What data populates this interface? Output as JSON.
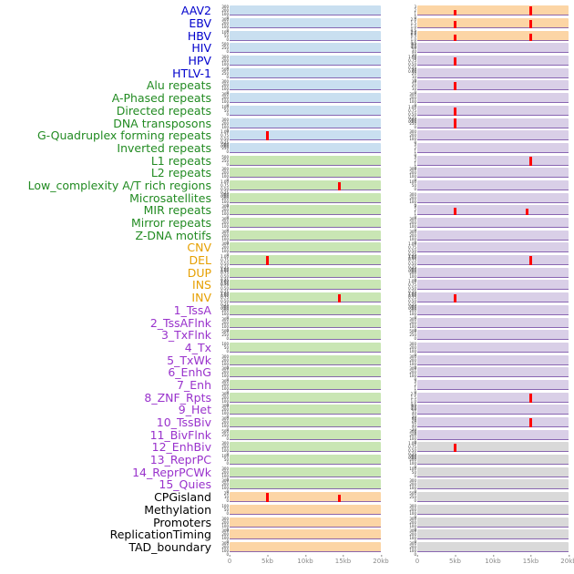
{
  "palette": {
    "label": {
      "blue": "#0000cc",
      "green": "#228B22",
      "orange": "#e69f00",
      "purple": "#9932CC",
      "black": "#000000"
    },
    "panel": {
      "blue": "#c9dff0",
      "green": "#c9e6b4",
      "orange": "#fcd5a5",
      "purple": "#d9cfe7",
      "gray": "#d9d9d9"
    },
    "spike": "#ff0000",
    "baseline": "#7a52a8"
  },
  "chart_data": {
    "type": "area",
    "title": "",
    "xlabel": "",
    "columns": 2,
    "x_axis": {
      "ticks": [
        "0",
        "5kb",
        "10kb",
        "15kb",
        "20kb"
      ],
      "range_kb": [
        0,
        20
      ]
    },
    "ytick_sets": {
      "count300": [
        "300",
        "200",
        "100",
        "0"
      ],
      "count500": [
        "500",
        "250",
        "0"
      ],
      "count100": [
        "100",
        "50",
        "0"
      ],
      "count80": [
        "80",
        "60",
        "40",
        "20",
        "0"
      ],
      "count30": [
        "30",
        "20",
        "10",
        "0"
      ],
      "count20": [
        "20",
        "10",
        "0"
      ],
      "count3": [
        "3",
        "2",
        "1",
        "0"
      ],
      "frac1": [
        "1.00",
        "0.75",
        "0.50",
        "0.25",
        "0.00"
      ],
      "frac2": [
        "2.0",
        "1.5",
        "1.0",
        "0.5",
        "0.0"
      ]
    },
    "rows": [
      {
        "label": "AAV2",
        "label_color": "blue",
        "panels": [
          {
            "bg": "blue",
            "yt": "count300",
            "spikes": []
          },
          {
            "bg": "orange",
            "yt": "count3",
            "spikes": [
              [
                5,
                0.55
              ],
              [
                15,
                0.95
              ]
            ]
          }
        ]
      },
      {
        "label": "EBV",
        "label_color": "blue",
        "panels": [
          {
            "bg": "blue",
            "yt": "count300",
            "spikes": []
          },
          {
            "bg": "orange",
            "yt": "frac2",
            "spikes": [
              [
                5,
                0.75
              ],
              [
                15,
                0.85
              ]
            ]
          }
        ]
      },
      {
        "label": "HBV",
        "label_color": "blue",
        "panels": [
          {
            "bg": "blue",
            "yt": "count100",
            "spikes": []
          },
          {
            "bg": "orange",
            "yt": "frac2",
            "spikes": [
              [
                5,
                0.65
              ],
              [
                15,
                0.7
              ]
            ]
          }
        ]
      },
      {
        "label": "HIV",
        "label_color": "blue",
        "panels": [
          {
            "bg": "blue",
            "yt": "count500",
            "spikes": []
          },
          {
            "bg": "purple",
            "yt": "count80",
            "spikes": []
          }
        ]
      },
      {
        "label": "HPV",
        "label_color": "blue",
        "panels": [
          {
            "bg": "blue",
            "yt": "count300",
            "spikes": []
          },
          {
            "bg": "purple",
            "yt": "frac1",
            "spikes": [
              [
                5,
                0.85
              ]
            ]
          }
        ]
      },
      {
        "label": "HTLV-1",
        "label_color": "blue",
        "panels": [
          {
            "bg": "blue",
            "yt": "count500",
            "spikes": []
          },
          {
            "bg": "purple",
            "yt": "count30",
            "spikes": []
          }
        ]
      },
      {
        "label": "Alu repeats",
        "label_color": "green",
        "panels": [
          {
            "bg": "blue",
            "yt": "count300",
            "spikes": []
          },
          {
            "bg": "purple",
            "yt": "count30",
            "spikes": [
              [
                5,
                0.85
              ]
            ]
          }
        ]
      },
      {
        "label": "A-Phased repeats",
        "label_color": "green",
        "panels": [
          {
            "bg": "blue",
            "yt": "count300",
            "spikes": []
          },
          {
            "bg": "purple",
            "yt": "count300",
            "spikes": []
          }
        ]
      },
      {
        "label": "Directed repeats",
        "label_color": "green",
        "panels": [
          {
            "bg": "blue",
            "yt": "count100",
            "spikes": []
          },
          {
            "bg": "purple",
            "yt": "frac1",
            "spikes": [
              [
                5,
                0.8
              ]
            ]
          }
        ]
      },
      {
        "label": "DNA transposons",
        "label_color": "green",
        "panels": [
          {
            "bg": "blue",
            "yt": "count300",
            "spikes": []
          },
          {
            "bg": "purple",
            "yt": "count500",
            "spikes": [
              [
                5,
                0.95
              ]
            ]
          }
        ]
      },
      {
        "label": "G-Quadruplex forming repeats",
        "label_color": "green",
        "panels": [
          {
            "bg": "blue",
            "yt": "frac1",
            "spikes": [
              [
                5,
                0.9
              ]
            ]
          },
          {
            "bg": "purple",
            "yt": "count300",
            "spikes": []
          }
        ]
      },
      {
        "label": "Inverted repeats",
        "label_color": "green",
        "panels": [
          {
            "bg": "blue",
            "yt": "count500",
            "spikes": []
          },
          {
            "bg": "purple",
            "yt": "count3",
            "spikes": []
          }
        ]
      },
      {
        "label": "L1 repeats",
        "label_color": "green",
        "panels": [
          {
            "bg": "green",
            "yt": "count500",
            "spikes": []
          },
          {
            "bg": "purple",
            "yt": "count3",
            "spikes": [
              [
                15,
                0.9
              ]
            ]
          }
        ]
      },
      {
        "label": "L2 repeats",
        "label_color": "green",
        "panels": [
          {
            "bg": "green",
            "yt": "count300",
            "spikes": []
          },
          {
            "bg": "purple",
            "yt": "count300",
            "spikes": []
          }
        ]
      },
      {
        "label": "Low_complexity A/T rich regions",
        "label_color": "green",
        "panels": [
          {
            "bg": "green",
            "yt": "frac1",
            "spikes": [
              [
                14.5,
                0.85
              ]
            ]
          },
          {
            "bg": "purple",
            "yt": "count100",
            "spikes": []
          }
        ]
      },
      {
        "label": "Microsatellites",
        "label_color": "green",
        "panels": [
          {
            "bg": "green",
            "yt": "count300",
            "spikes": []
          },
          {
            "bg": "purple",
            "yt": "count300",
            "spikes": []
          }
        ]
      },
      {
        "label": "MIR repeats",
        "label_color": "green",
        "panels": [
          {
            "bg": "green",
            "yt": "count300",
            "spikes": []
          },
          {
            "bg": "purple",
            "yt": "count3",
            "spikes": [
              [
                5,
                0.8
              ],
              [
                14.5,
                0.7
              ]
            ]
          }
        ]
      },
      {
        "label": "Mirror repeats",
        "label_color": "green",
        "panels": [
          {
            "bg": "green",
            "yt": "count300",
            "spikes": []
          },
          {
            "bg": "purple",
            "yt": "count300",
            "spikes": []
          }
        ]
      },
      {
        "label": "Z-DNA motifs",
        "label_color": "green",
        "panels": [
          {
            "bg": "green",
            "yt": "count300",
            "spikes": []
          },
          {
            "bg": "purple",
            "yt": "count300",
            "spikes": []
          }
        ]
      },
      {
        "label": "CNV",
        "label_color": "orange",
        "panels": [
          {
            "bg": "green",
            "yt": "count300",
            "spikes": []
          },
          {
            "bg": "purple",
            "yt": "frac1",
            "spikes": []
          }
        ]
      },
      {
        "label": "DEL",
        "label_color": "orange",
        "panels": [
          {
            "bg": "green",
            "yt": "frac1",
            "spikes": [
              [
                5,
                0.9
              ]
            ]
          },
          {
            "bg": "purple",
            "yt": "frac1",
            "spikes": [
              [
                15,
                0.9
              ]
            ]
          }
        ]
      },
      {
        "label": "DUP",
        "label_color": "orange",
        "panels": [
          {
            "bg": "green",
            "yt": "frac1",
            "spikes": []
          },
          {
            "bg": "purple",
            "yt": "count300",
            "spikes": []
          }
        ]
      },
      {
        "label": "INS",
        "label_color": "orange",
        "panels": [
          {
            "bg": "green",
            "yt": "frac1",
            "spikes": []
          },
          {
            "bg": "purple",
            "yt": "frac1",
            "spikes": []
          }
        ]
      },
      {
        "label": "INV",
        "label_color": "orange",
        "panels": [
          {
            "bg": "green",
            "yt": "frac1",
            "spikes": [
              [
                14.5,
                0.85
              ]
            ]
          },
          {
            "bg": "purple",
            "yt": "frac1",
            "spikes": [
              [
                5,
                0.85
              ]
            ]
          }
        ]
      },
      {
        "label": "1_TssA",
        "label_color": "purple",
        "panels": [
          {
            "bg": "green",
            "yt": "count300",
            "spikes": []
          },
          {
            "bg": "purple",
            "yt": "count300",
            "spikes": []
          }
        ]
      },
      {
        "label": "2_TssAFlnk",
        "label_color": "purple",
        "panels": [
          {
            "bg": "green",
            "yt": "count300",
            "spikes": []
          },
          {
            "bg": "purple",
            "yt": "count300",
            "spikes": []
          }
        ]
      },
      {
        "label": "3_TxFlnk",
        "label_color": "purple",
        "panels": [
          {
            "bg": "green",
            "yt": "count500",
            "spikes": []
          },
          {
            "bg": "purple",
            "yt": "count500",
            "spikes": []
          }
        ]
      },
      {
        "label": "4_Tx",
        "label_color": "purple",
        "panels": [
          {
            "bg": "green",
            "yt": "count100",
            "spikes": []
          },
          {
            "bg": "purple",
            "yt": "count300",
            "spikes": []
          }
        ]
      },
      {
        "label": "5_TxWk",
        "label_color": "purple",
        "panels": [
          {
            "bg": "green",
            "yt": "count300",
            "spikes": []
          },
          {
            "bg": "purple",
            "yt": "count300",
            "spikes": []
          }
        ]
      },
      {
        "label": "6_EnhG",
        "label_color": "purple",
        "panels": [
          {
            "bg": "green",
            "yt": "count300",
            "spikes": []
          },
          {
            "bg": "purple",
            "yt": "count300",
            "spikes": []
          }
        ]
      },
      {
        "label": "7_Enh",
        "label_color": "purple",
        "panels": [
          {
            "bg": "green",
            "yt": "count300",
            "spikes": []
          },
          {
            "bg": "purple",
            "yt": "count3",
            "spikes": []
          }
        ]
      },
      {
        "label": "8_ZNF_Rpts",
        "label_color": "purple",
        "panels": [
          {
            "bg": "green",
            "yt": "count300",
            "spikes": []
          },
          {
            "bg": "purple",
            "yt": "frac2",
            "spikes": [
              [
                15,
                0.85
              ]
            ]
          }
        ]
      },
      {
        "label": "9_Het",
        "label_color": "purple",
        "panels": [
          {
            "bg": "green",
            "yt": "count300",
            "spikes": []
          },
          {
            "bg": "purple",
            "yt": "count80",
            "spikes": []
          }
        ]
      },
      {
        "label": "10_TssBiv",
        "label_color": "purple",
        "panels": [
          {
            "bg": "green",
            "yt": "count300",
            "spikes": []
          },
          {
            "bg": "purple",
            "yt": "count80",
            "spikes": [
              [
                15,
                0.9
              ]
            ]
          }
        ]
      },
      {
        "label": "11_BivFlnk",
        "label_color": "purple",
        "panels": [
          {
            "bg": "green",
            "yt": "count500",
            "spikes": []
          },
          {
            "bg": "purple",
            "yt": "count300",
            "spikes": []
          }
        ]
      },
      {
        "label": "12_EnhBiv",
        "label_color": "purple",
        "panels": [
          {
            "bg": "green",
            "yt": "count300",
            "spikes": []
          },
          {
            "bg": "gray",
            "yt": "frac1",
            "spikes": [
              [
                5,
                0.85
              ]
            ]
          }
        ]
      },
      {
        "label": "13_ReprPC",
        "label_color": "purple",
        "panels": [
          {
            "bg": "green",
            "yt": "count100",
            "spikes": []
          },
          {
            "bg": "gray",
            "yt": "count300",
            "spikes": []
          }
        ]
      },
      {
        "label": "14_ReprPCWk",
        "label_color": "purple",
        "panels": [
          {
            "bg": "green",
            "yt": "count300",
            "spikes": []
          },
          {
            "bg": "gray",
            "yt": "count100",
            "spikes": []
          }
        ]
      },
      {
        "label": "15_Quies",
        "label_color": "purple",
        "panels": [
          {
            "bg": "green",
            "yt": "count300",
            "spikes": []
          },
          {
            "bg": "gray",
            "yt": "count300",
            "spikes": []
          }
        ]
      },
      {
        "label": "CPGisland",
        "label_color": "black",
        "panels": [
          {
            "bg": "orange",
            "yt": "count20",
            "spikes": [
              [
                5,
                0.95
              ],
              [
                14.5,
                0.75
              ]
            ]
          },
          {
            "bg": "gray",
            "yt": "count500",
            "spikes": []
          }
        ]
      },
      {
        "label": "Methylation",
        "label_color": "black",
        "panels": [
          {
            "bg": "orange",
            "yt": "count100",
            "spikes": []
          },
          {
            "bg": "gray",
            "yt": "count300",
            "spikes": []
          }
        ]
      },
      {
        "label": "Promoters",
        "label_color": "black",
        "panels": [
          {
            "bg": "orange",
            "yt": "count300",
            "spikes": []
          },
          {
            "bg": "gray",
            "yt": "count300",
            "spikes": []
          }
        ]
      },
      {
        "label": "ReplicationTiming",
        "label_color": "black",
        "panels": [
          {
            "bg": "orange",
            "yt": "count300",
            "spikes": []
          },
          {
            "bg": "gray",
            "yt": "count300",
            "spikes": []
          }
        ]
      },
      {
        "label": "TAD_boundary",
        "label_color": "black",
        "panels": [
          {
            "bg": "orange",
            "yt": "count300",
            "spikes": []
          },
          {
            "bg": "gray",
            "yt": "count300",
            "spikes": []
          }
        ]
      }
    ]
  }
}
